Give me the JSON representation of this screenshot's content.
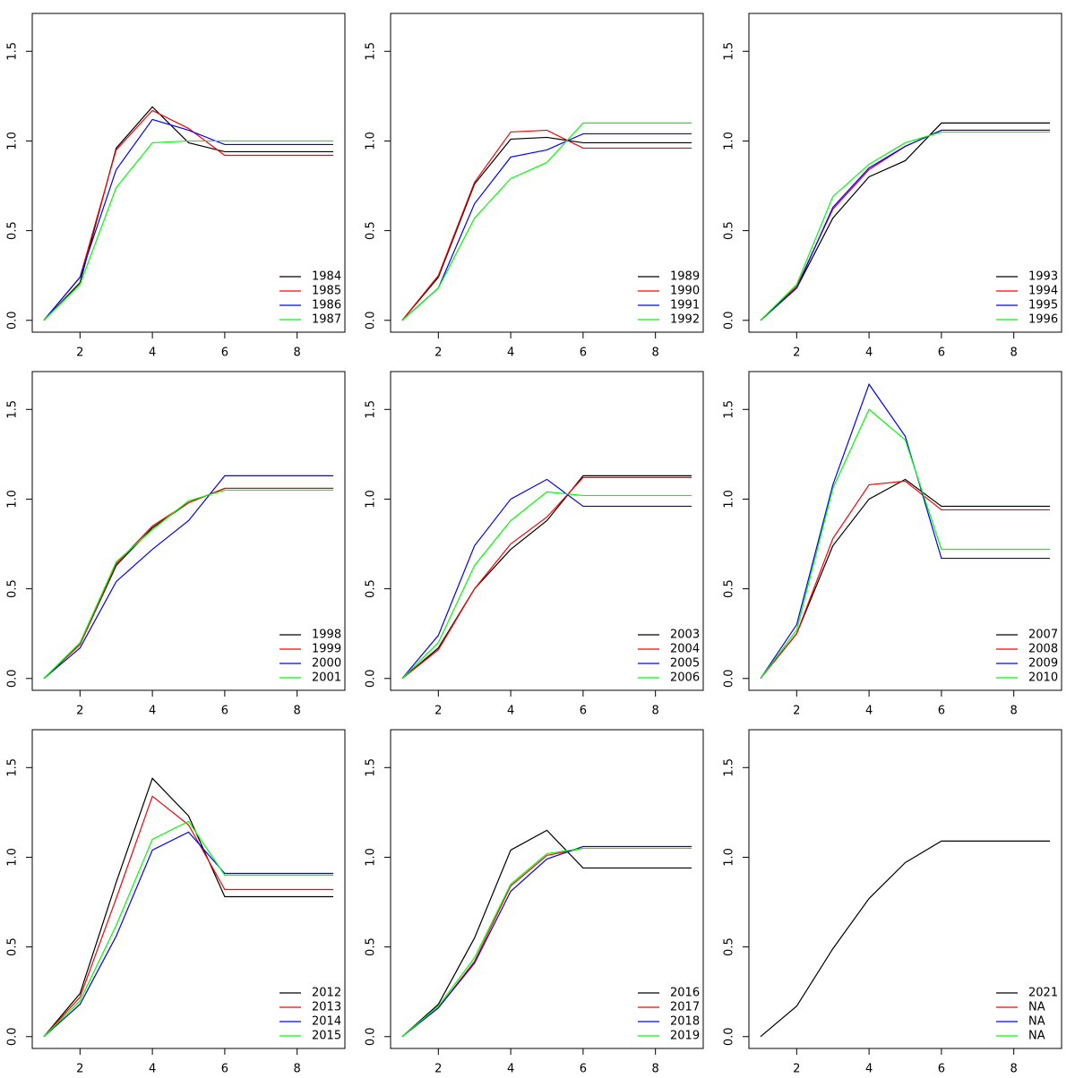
{
  "chart_data": [
    {
      "type": "line",
      "x": [
        1,
        2,
        3,
        4,
        5,
        6,
        7,
        8,
        9
      ],
      "xlim": [
        0.68,
        9.32
      ],
      "ylim": [
        -0.066,
        1.711
      ],
      "xticks": [
        2,
        4,
        6,
        8
      ],
      "yticks": [
        {
          "value": 0,
          "label": "0.0"
        },
        {
          "value": 0.5,
          "label": "0.5"
        },
        {
          "value": 1,
          "label": "1.0"
        },
        {
          "value": 1.5,
          "label": "1.5"
        }
      ],
      "legend": "bottomright",
      "series": [
        {
          "name": "1984",
          "color": "#000000",
          "values": [
            0,
            0.21,
            0.96,
            1.19,
            0.99,
            0.94,
            0.94,
            0.94,
            0.94
          ]
        },
        {
          "name": "1985",
          "color": "#ff0000",
          "values": [
            0,
            0.24,
            0.95,
            1.17,
            1.07,
            0.92,
            0.92,
            0.92,
            0.92
          ]
        },
        {
          "name": "1986",
          "color": "#0000ff",
          "values": [
            0,
            0.24,
            0.84,
            1.12,
            1.06,
            0.98,
            0.98,
            0.98,
            0.98
          ]
        },
        {
          "name": "1987",
          "color": "#00ff00",
          "values": [
            0,
            0.2,
            0.74,
            0.99,
            1.0,
            1.0,
            1.0,
            1.0,
            1.0
          ]
        }
      ]
    },
    {
      "type": "line",
      "x": [
        1,
        2,
        3,
        4,
        5,
        6,
        7,
        8,
        9
      ],
      "xlim": [
        0.68,
        9.32
      ],
      "ylim": [
        -0.066,
        1.711
      ],
      "xticks": [
        2,
        4,
        6,
        8
      ],
      "yticks": [
        {
          "value": 0,
          "label": "0.0"
        },
        {
          "value": 0.5,
          "label": "0.5"
        },
        {
          "value": 1,
          "label": "1.0"
        },
        {
          "value": 1.5,
          "label": "1.5"
        }
      ],
      "legend": "bottomright",
      "series": [
        {
          "name": "1989",
          "color": "#000000",
          "values": [
            0,
            0.24,
            0.76,
            1.01,
            1.02,
            0.99,
            0.99,
            0.99,
            0.99
          ]
        },
        {
          "name": "1990",
          "color": "#ff0000",
          "values": [
            0,
            0.25,
            0.77,
            1.05,
            1.06,
            0.96,
            0.96,
            0.96,
            0.96
          ]
        },
        {
          "name": "1991",
          "color": "#0000ff",
          "values": [
            0,
            0.18,
            0.65,
            0.91,
            0.95,
            1.04,
            1.04,
            1.04,
            1.04
          ]
        },
        {
          "name": "1992",
          "color": "#00ff00",
          "values": [
            0,
            0.18,
            0.57,
            0.79,
            0.88,
            1.1,
            1.1,
            1.1,
            1.1
          ]
        }
      ]
    },
    {
      "type": "line",
      "x": [
        1,
        2,
        3,
        4,
        5,
        6,
        7,
        8,
        9
      ],
      "xlim": [
        0.68,
        9.32
      ],
      "ylim": [
        -0.066,
        1.711
      ],
      "xticks": [
        2,
        4,
        6,
        8
      ],
      "yticks": [
        {
          "value": 0,
          "label": "0.0"
        },
        {
          "value": 0.5,
          "label": "0.5"
        },
        {
          "value": 1,
          "label": "1.0"
        },
        {
          "value": 1.5,
          "label": "1.5"
        }
      ],
      "legend": "bottomright",
      "series": [
        {
          "name": "1993",
          "color": "#000000",
          "values": [
            0,
            0.18,
            0.57,
            0.8,
            0.89,
            1.1,
            1.1,
            1.1,
            1.1
          ]
        },
        {
          "name": "1994",
          "color": "#ff0000",
          "values": [
            0,
            0.19,
            0.62,
            0.84,
            0.97,
            1.06,
            1.06,
            1.06,
            1.06
          ]
        },
        {
          "name": "1995",
          "color": "#0000ff",
          "values": [
            0,
            0.18,
            0.63,
            0.85,
            0.97,
            1.06,
            1.06,
            1.06,
            1.06
          ]
        },
        {
          "name": "1996",
          "color": "#00ff00",
          "values": [
            0,
            0.2,
            0.69,
            0.87,
            0.99,
            1.05,
            1.05,
            1.05,
            1.05
          ]
        }
      ]
    },
    {
      "type": "line",
      "x": [
        1,
        2,
        3,
        4,
        5,
        6,
        7,
        8,
        9
      ],
      "xlim": [
        0.68,
        9.32
      ],
      "ylim": [
        -0.066,
        1.711
      ],
      "xticks": [
        2,
        4,
        6,
        8
      ],
      "yticks": [
        {
          "value": 0,
          "label": "0.0"
        },
        {
          "value": 0.5,
          "label": "0.5"
        },
        {
          "value": 1,
          "label": "1.0"
        },
        {
          "value": 1.5,
          "label": "1.5"
        }
      ],
      "legend": "bottomright",
      "series": [
        {
          "name": "1998",
          "color": "#000000",
          "values": [
            0,
            0.19,
            0.63,
            0.84,
            0.98,
            1.06,
            1.06,
            1.06,
            1.06
          ]
        },
        {
          "name": "1999",
          "color": "#ff0000",
          "values": [
            0,
            0.19,
            0.64,
            0.85,
            0.98,
            1.06,
            1.06,
            1.06,
            1.06
          ]
        },
        {
          "name": "2000",
          "color": "#0000ff",
          "values": [
            0,
            0.17,
            0.54,
            0.72,
            0.88,
            1.13,
            1.13,
            1.13,
            1.13
          ]
        },
        {
          "name": "2001",
          "color": "#00ff00",
          "values": [
            0,
            0.2,
            0.65,
            0.83,
            0.99,
            1.05,
            1.05,
            1.05,
            1.05
          ]
        }
      ]
    },
    {
      "type": "line",
      "x": [
        1,
        2,
        3,
        4,
        5,
        6,
        7,
        8,
        9
      ],
      "xlim": [
        0.68,
        9.32
      ],
      "ylim": [
        -0.066,
        1.711
      ],
      "xticks": [
        2,
        4,
        6,
        8
      ],
      "yticks": [
        {
          "value": 0,
          "label": "0.0"
        },
        {
          "value": 0.5,
          "label": "0.5"
        },
        {
          "value": 1,
          "label": "1.0"
        },
        {
          "value": 1.5,
          "label": "1.5"
        }
      ],
      "legend": "bottomright",
      "series": [
        {
          "name": "2003",
          "color": "#000000",
          "values": [
            0,
            0.17,
            0.5,
            0.72,
            0.88,
            1.13,
            1.13,
            1.13,
            1.13
          ]
        },
        {
          "name": "2004",
          "color": "#ff0000",
          "values": [
            0,
            0.16,
            0.5,
            0.75,
            0.9,
            1.12,
            1.12,
            1.12,
            1.12
          ]
        },
        {
          "name": "2005",
          "color": "#0000ff",
          "values": [
            0,
            0.24,
            0.74,
            1.0,
            1.11,
            0.96,
            0.96,
            0.96,
            0.96
          ]
        },
        {
          "name": "2006",
          "color": "#00ff00",
          "values": [
            0,
            0.2,
            0.63,
            0.88,
            1.04,
            1.02,
            1.02,
            1.02,
            1.02
          ]
        }
      ]
    },
    {
      "type": "line",
      "x": [
        1,
        2,
        3,
        4,
        5,
        6,
        7,
        8,
        9
      ],
      "xlim": [
        0.68,
        9.32
      ],
      "ylim": [
        -0.066,
        1.711
      ],
      "xticks": [
        2,
        4,
        6,
        8
      ],
      "yticks": [
        {
          "value": 0,
          "label": "0.0"
        },
        {
          "value": 0.5,
          "label": "0.5"
        },
        {
          "value": 1,
          "label": "1.0"
        },
        {
          "value": 1.5,
          "label": "1.5"
        }
      ],
      "legend": "bottomright",
      "series": [
        {
          "name": "2007",
          "color": "#000000",
          "values": [
            0,
            0.25,
            0.74,
            1.0,
            1.11,
            0.96,
            0.96,
            0.96,
            0.96
          ]
        },
        {
          "name": "2008",
          "color": "#ff0000",
          "values": [
            0,
            0.25,
            0.78,
            1.08,
            1.1,
            0.94,
            0.94,
            0.94,
            0.94
          ]
        },
        {
          "name": "2009",
          "color": "#0000ff",
          "values": [
            0,
            0.3,
            1.08,
            1.64,
            1.35,
            0.67,
            0.67,
            0.67,
            0.67
          ]
        },
        {
          "name": "2010",
          "color": "#00ff00",
          "values": [
            0,
            0.27,
            1.06,
            1.5,
            1.33,
            0.72,
            0.72,
            0.72,
            0.72
          ]
        }
      ]
    },
    {
      "type": "line",
      "x": [
        1,
        2,
        3,
        4,
        5,
        6,
        7,
        8,
        9
      ],
      "xlim": [
        0.68,
        9.32
      ],
      "ylim": [
        -0.066,
        1.711
      ],
      "xticks": [
        2,
        4,
        6,
        8
      ],
      "yticks": [
        {
          "value": 0,
          "label": "0.0"
        },
        {
          "value": 0.5,
          "label": "0.5"
        },
        {
          "value": 1,
          "label": "1.0"
        },
        {
          "value": 1.5,
          "label": "1.5"
        }
      ],
      "legend": "bottomright",
      "series": [
        {
          "name": "2012",
          "color": "#000000",
          "values": [
            0,
            0.24,
            0.86,
            1.44,
            1.23,
            0.78,
            0.78,
            0.78,
            0.78
          ]
        },
        {
          "name": "2013",
          "color": "#ff0000",
          "values": [
            0,
            0.22,
            0.77,
            1.34,
            1.18,
            0.82,
            0.82,
            0.82,
            0.82
          ]
        },
        {
          "name": "2014",
          "color": "#0000ff",
          "values": [
            0,
            0.18,
            0.56,
            1.04,
            1.14,
            0.91,
            0.91,
            0.91,
            0.91
          ]
        },
        {
          "name": "2015",
          "color": "#00ff00",
          "values": [
            0,
            0.2,
            0.62,
            1.1,
            1.2,
            0.9,
            0.9,
            0.9,
            0.9
          ]
        }
      ]
    },
    {
      "type": "line",
      "x": [
        1,
        2,
        3,
        4,
        5,
        6,
        7,
        8,
        9
      ],
      "xlim": [
        0.68,
        9.32
      ],
      "ylim": [
        -0.066,
        1.711
      ],
      "xticks": [
        2,
        4,
        6,
        8
      ],
      "yticks": [
        {
          "value": 0,
          "label": "0.0"
        },
        {
          "value": 0.5,
          "label": "0.5"
        },
        {
          "value": 1,
          "label": "1.0"
        },
        {
          "value": 1.5,
          "label": "1.5"
        }
      ],
      "legend": "bottomright",
      "series": [
        {
          "name": "2016",
          "color": "#000000",
          "values": [
            0,
            0.18,
            0.55,
            1.04,
            1.15,
            0.94,
            0.94,
            0.94,
            0.94
          ]
        },
        {
          "name": "2017",
          "color": "#ff0000",
          "values": [
            0,
            0.16,
            0.42,
            0.84,
            1.01,
            1.05,
            1.05,
            1.05,
            1.05
          ]
        },
        {
          "name": "2018",
          "color": "#0000ff",
          "values": [
            0,
            0.16,
            0.41,
            0.81,
            0.99,
            1.06,
            1.06,
            1.06,
            1.06
          ]
        },
        {
          "name": "2019",
          "color": "#00ff00",
          "values": [
            0,
            0.17,
            0.44,
            0.85,
            1.02,
            1.05,
            1.05,
            1.05,
            1.05
          ]
        }
      ]
    },
    {
      "type": "line",
      "x": [
        1,
        2,
        3,
        4,
        5,
        6,
        7,
        8,
        9
      ],
      "xlim": [
        0.68,
        9.32
      ],
      "ylim": [
        -0.066,
        1.711
      ],
      "xticks": [
        2,
        4,
        6,
        8
      ],
      "yticks": [
        {
          "value": 0,
          "label": "0.0"
        },
        {
          "value": 0.5,
          "label": "0.5"
        },
        {
          "value": 1,
          "label": "1.0"
        },
        {
          "value": 1.5,
          "label": "1.5"
        }
      ],
      "legend": "bottomright",
      "series": [
        {
          "name": "2021",
          "color": "#000000",
          "values": [
            0,
            0.17,
            0.49,
            0.77,
            0.97,
            1.09,
            1.09,
            1.09,
            1.09
          ]
        },
        {
          "name": "NA",
          "color": "#ff0000",
          "values": [
            null,
            null,
            null,
            null,
            null,
            null,
            null,
            null,
            null
          ]
        },
        {
          "name": "NA",
          "color": "#0000ff",
          "values": [
            null,
            null,
            null,
            null,
            null,
            null,
            null,
            null,
            null
          ]
        },
        {
          "name": "NA",
          "color": "#00ff00",
          "values": [
            null,
            null,
            null,
            null,
            null,
            null,
            null,
            null,
            null
          ]
        }
      ]
    }
  ]
}
